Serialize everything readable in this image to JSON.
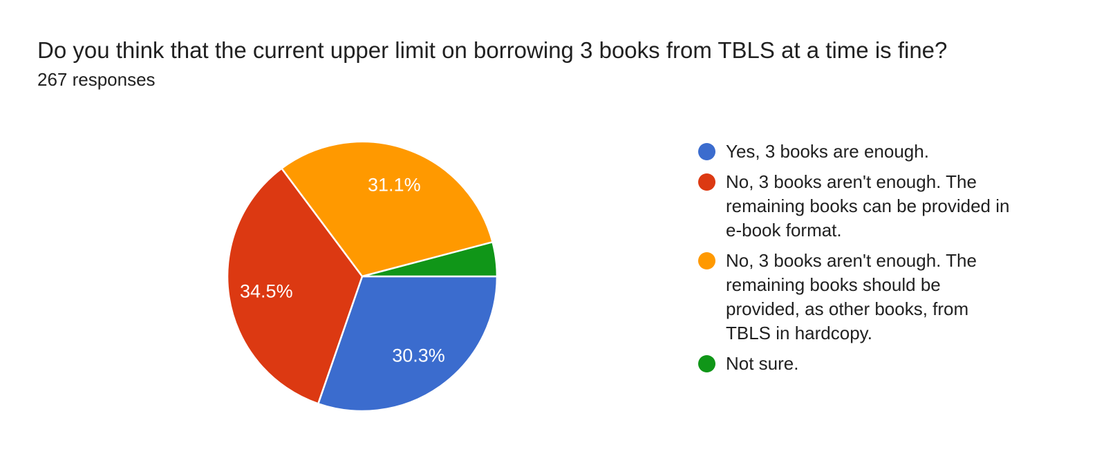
{
  "header": {
    "title": "Do you think that the current upper limit on borrowing 3 books from TBLS at a time is fine?",
    "responses_count": "267 responses"
  },
  "chart_data": {
    "type": "pie",
    "title": "Do you think that the current upper limit on borrowing 3 books from TBLS at a time is fine?",
    "subtitle": "267 responses",
    "unit": "%",
    "start_angle_deg": 0,
    "direction": "clockwise",
    "legend_position": "right",
    "categories": [
      "Yes, 3 books are enough.",
      "No, 3 books aren't enough. The remaining books can be provided in e-book format.",
      "No, 3 books aren't enough. The remaining books should be provided, as other books, from TBLS in hardcopy.",
      "Not sure."
    ],
    "values": [
      30.3,
      34.5,
      31.1,
      4.1
    ],
    "slice_labels": [
      "30.3%",
      "34.5%",
      "31.1%",
      ""
    ],
    "colors": [
      "#3b6cce",
      "#dc3912",
      "#ff9900",
      "#109618"
    ],
    "slice_border_color": "#ffffff",
    "label_text_color": "#ffffff",
    "min_pct_for_label": 5
  },
  "legend": {
    "items": [
      {
        "label": "Yes, 3 books are enough.",
        "color": "#3b6cce"
      },
      {
        "label": "No, 3 books aren't enough. The remaining books can be provided in e-book format.",
        "color": "#dc3912"
      },
      {
        "label": "No, 3 books aren't enough. The remaining books should be provided, as other books, from TBLS in hardcopy.",
        "color": "#ff9900"
      },
      {
        "label": "Not sure.",
        "color": "#109618"
      }
    ]
  },
  "colors": {
    "background": "#ffffff",
    "text_primary": "#212121"
  }
}
